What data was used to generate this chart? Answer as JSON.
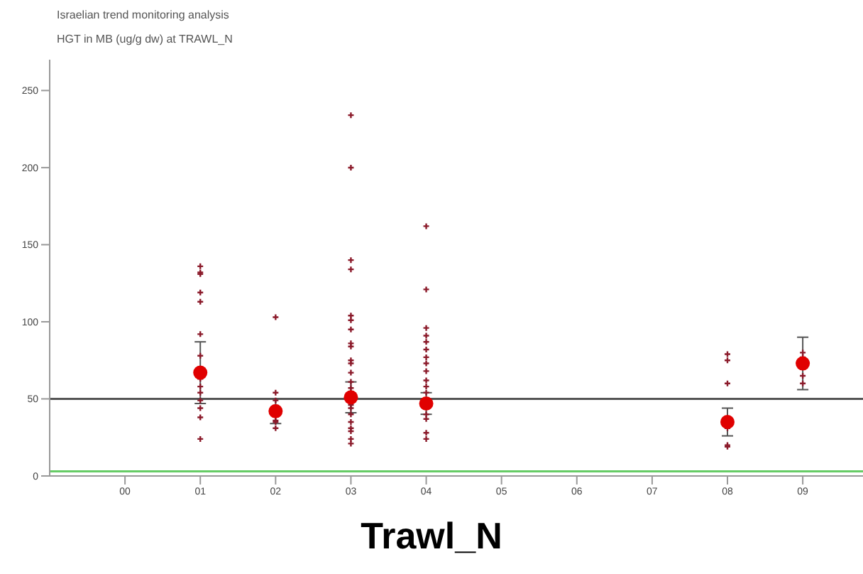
{
  "chart_data": {
    "type": "scatter",
    "title": "Trawl_N",
    "subtitle": "Israelian trend monitoring analysis\nHGT in MB (ug/g dw) at TRAWL_N",
    "xlim": [
      -1,
      9.8
    ],
    "xticks": [
      {
        "value": 0,
        "label": "00"
      },
      {
        "value": 1,
        "label": "01"
      },
      {
        "value": 2,
        "label": "02"
      },
      {
        "value": 3,
        "label": "03"
      },
      {
        "value": 4,
        "label": "04"
      },
      {
        "value": 5,
        "label": "05"
      },
      {
        "value": 6,
        "label": "06"
      },
      {
        "value": 7,
        "label": "07"
      },
      {
        "value": 8,
        "label": "08"
      },
      {
        "value": 9,
        "label": "09"
      }
    ],
    "ylim": [
      0,
      270
    ],
    "yticks": [
      0,
      50,
      100,
      150,
      200,
      250
    ],
    "grid": false,
    "legend": false,
    "series": [
      {
        "color": "#8b1a2a",
        "marker": "cross",
        "x": [
          1,
          1,
          1,
          1,
          1,
          1,
          1,
          1,
          1,
          1,
          1,
          1,
          1,
          1,
          2,
          2,
          2,
          2,
          2,
          2,
          3,
          3,
          3,
          3,
          3,
          3,
          3,
          3,
          3,
          3,
          3,
          3,
          3,
          3,
          3,
          3,
          3,
          3,
          3,
          3,
          3,
          3,
          4,
          4,
          4,
          4,
          4,
          4,
          4,
          4,
          4,
          4,
          4,
          4,
          4,
          4,
          4,
          4,
          8,
          8,
          8,
          8,
          8,
          8,
          9,
          9,
          9,
          9
        ],
        "values": [
          136,
          132,
          131,
          119,
          113,
          92,
          78,
          63,
          58,
          54,
          49,
          44,
          38,
          24,
          103,
          54,
          49,
          36,
          35,
          31,
          234,
          200,
          140,
          134,
          104,
          101,
          95,
          86,
          84,
          75,
          73,
          67,
          61,
          57,
          46,
          44,
          40,
          35,
          31,
          29,
          24,
          21,
          162,
          121,
          96,
          91,
          87,
          82,
          77,
          73,
          68,
          62,
          58,
          54,
          40,
          37,
          28,
          24,
          79,
          75,
          60,
          31,
          20,
          19,
          80,
          77,
          65,
          60
        ]
      },
      {
        "color": "#e00000",
        "marker": "circle",
        "x": [
          1,
          2,
          3,
          4,
          8,
          9
        ],
        "values": [
          67,
          42,
          51,
          47,
          35,
          73
        ],
        "errors": [
          20,
          8,
          10,
          7,
          9,
          17
        ]
      }
    ],
    "ref_lines": [
      {
        "axis": "y",
        "value": 50,
        "color": "#555555"
      },
      {
        "axis": "y",
        "value": 3,
        "color": "#66cc66"
      }
    ]
  }
}
